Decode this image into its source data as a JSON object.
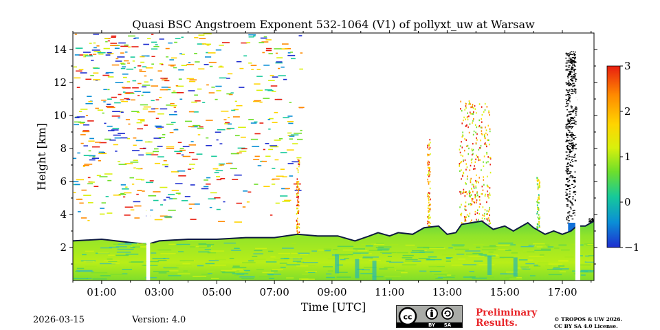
{
  "chart_data": {
    "type": "heatmap",
    "title": "Quasi BSC Angstroem Exponent 532-1064 (V1) of pollyxt_uw at Warsaw",
    "xlabel": "Time [UTC]",
    "ylabel": "Height [km]",
    "xlim": [
      0,
      18.1
    ],
    "ylim": [
      0,
      15
    ],
    "xticks": [
      {
        "value": 1,
        "label": "01:00"
      },
      {
        "value": 3,
        "label": "03:00"
      },
      {
        "value": 5,
        "label": "05:00"
      },
      {
        "value": 7,
        "label": "07:00"
      },
      {
        "value": 9,
        "label": "09:00"
      },
      {
        "value": 11,
        "label": "11:00"
      },
      {
        "value": 13,
        "label": "13:00"
      },
      {
        "value": 15,
        "label": "15:00"
      },
      {
        "value": 17,
        "label": "17:00"
      }
    ],
    "yticks": [
      {
        "value": 2,
        "label": "2"
      },
      {
        "value": 4,
        "label": "4"
      },
      {
        "value": 6,
        "label": "6"
      },
      {
        "value": 8,
        "label": "8"
      },
      {
        "value": 10,
        "label": "10"
      },
      {
        "value": 12,
        "label": "12"
      },
      {
        "value": 14,
        "label": "14"
      }
    ],
    "colorbar": {
      "range": [
        -1,
        3
      ],
      "ticks": [
        {
          "value": 3,
          "label": "3"
        },
        {
          "value": 2,
          "label": "2"
        },
        {
          "value": 1,
          "label": "1"
        },
        {
          "value": 0,
          "label": "0"
        },
        {
          "value": -1,
          "label": "−1"
        }
      ],
      "colormap": [
        "#1f2ed0",
        "#0a8fd6",
        "#16c99a",
        "#6fdf2a",
        "#d9f00c",
        "#ffd400",
        "#ff8a00",
        "#e81e10"
      ]
    },
    "boundary_layer_top_km": [
      [
        0.0,
        2.4
      ],
      [
        1.0,
        2.5
      ],
      [
        2.0,
        2.3
      ],
      [
        2.6,
        2.2
      ],
      [
        3.0,
        2.4
      ],
      [
        4.0,
        2.5
      ],
      [
        5.0,
        2.5
      ],
      [
        6.0,
        2.6
      ],
      [
        7.0,
        2.6
      ],
      [
        7.8,
        2.8
      ],
      [
        8.5,
        2.7
      ],
      [
        9.2,
        2.7
      ],
      [
        9.8,
        2.4
      ],
      [
        10.3,
        2.7
      ],
      [
        10.6,
        2.9
      ],
      [
        11.0,
        2.7
      ],
      [
        11.3,
        2.9
      ],
      [
        11.8,
        2.8
      ],
      [
        12.2,
        3.2
      ],
      [
        12.7,
        3.3
      ],
      [
        13.0,
        2.8
      ],
      [
        13.3,
        2.9
      ],
      [
        13.5,
        3.4
      ],
      [
        14.2,
        3.6
      ],
      [
        14.6,
        3.1
      ],
      [
        15.0,
        3.3
      ],
      [
        15.3,
        3.0
      ],
      [
        15.8,
        3.5
      ],
      [
        16.0,
        3.2
      ],
      [
        16.4,
        2.8
      ],
      [
        16.7,
        3.0
      ],
      [
        17.0,
        2.8
      ],
      [
        17.3,
        3.0
      ],
      [
        17.5,
        3.3
      ],
      [
        17.8,
        3.3
      ],
      [
        18.1,
        3.6
      ]
    ],
    "data_gaps_hours": [
      [
        2.55,
        2.68
      ],
      [
        17.45,
        17.62
      ]
    ],
    "aerosol_plumes": [
      {
        "time_start": 13.4,
        "time_end": 14.5,
        "height_min": 3.4,
        "height_max": 11.0,
        "value_range": [
          0.5,
          3
        ]
      },
      {
        "time_start": 12.3,
        "time_end": 12.4,
        "height_min": 3.0,
        "height_max": 8.6,
        "value_range": [
          1,
          3
        ]
      },
      {
        "time_start": 7.75,
        "time_end": 7.85,
        "height_min": 2.8,
        "height_max": 7.5,
        "value_range": [
          1,
          3
        ]
      },
      {
        "time_start": 16.1,
        "time_end": 16.2,
        "height_min": 3.2,
        "height_max": 6.3,
        "value_range": [
          0,
          2
        ]
      }
    ],
    "upper_noise_region": {
      "time_start": 0,
      "time_end": 7.9,
      "height_min": 3.0,
      "height_max": 15.0,
      "value_range": [
        -1,
        3
      ]
    }
  },
  "footer": {
    "date": "2026-03-15",
    "version": "Version: 4.0",
    "license_badge": {
      "cc": "cc",
      "by": "BY",
      "sa": "SA"
    },
    "preliminary_line1": "Preliminary",
    "preliminary_line2": "Results.",
    "copyright_line1": "© TROPOS & UW 2026.",
    "copyright_line2": "CC BY SA 4.0 License."
  }
}
